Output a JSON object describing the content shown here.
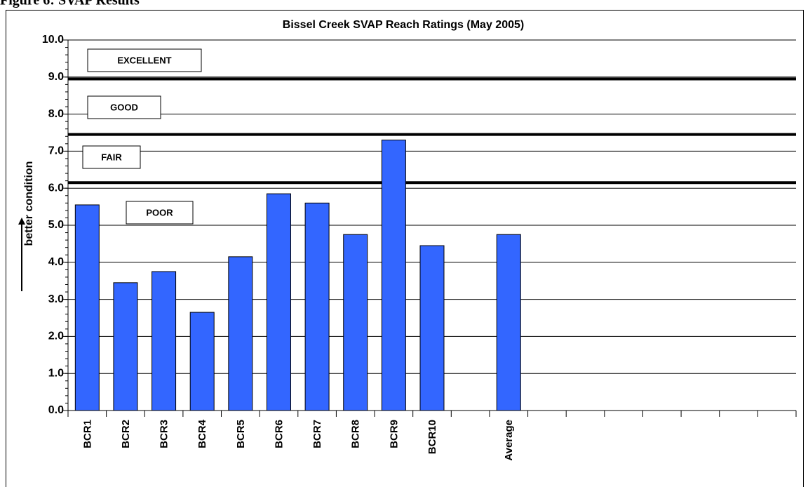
{
  "page_heading": "Figure 6: SVAP Results",
  "chart_data": {
    "type": "bar",
    "title": "Bissel Creek SVAP Reach Ratings (May 2005)",
    "y_label": "better condition",
    "categories": [
      "BCR1",
      "BCR2",
      "BCR3",
      "BCR4",
      "BCR5",
      "BCR6",
      "BCR7",
      "BCR8",
      "BCR9",
      "BCR10",
      null,
      "Average",
      null,
      null,
      null,
      null,
      null,
      null,
      null
    ],
    "values": [
      5.55,
      3.45,
      3.75,
      2.65,
      4.15,
      5.85,
      5.6,
      4.75,
      7.3,
      4.45,
      null,
      4.75,
      null,
      null,
      null,
      null,
      null,
      null,
      null
    ],
    "color": "#3366ff",
    "ylim": [
      0,
      10
    ],
    "yticks": [
      {
        "value": 0,
        "label": "0.0"
      },
      {
        "value": 1,
        "label": "1.0"
      },
      {
        "value": 2,
        "label": "2.0"
      },
      {
        "value": 3,
        "label": "3.0"
      },
      {
        "value": 4,
        "label": "4.0"
      },
      {
        "value": 5,
        "label": "5.0"
      },
      {
        "value": 6,
        "label": "6.0"
      },
      {
        "value": 7,
        "label": "7.0"
      },
      {
        "value": 8,
        "label": "8.0"
      },
      {
        "value": 9,
        "label": "9.0"
      },
      {
        "value": 10,
        "label": "10.0"
      }
    ],
    "grid": true,
    "thresholds": [
      8.95,
      7.45,
      6.15
    ],
    "annotations": [
      "EXCELLENT",
      "GOOD",
      "FAIR",
      "POOR"
    ]
  }
}
